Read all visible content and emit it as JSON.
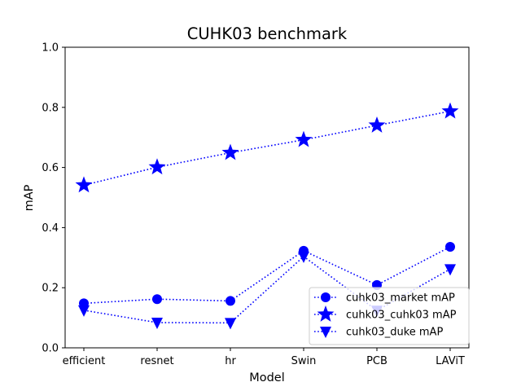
{
  "chart_data": {
    "type": "line",
    "title": "CUHK03 benchmark",
    "xlabel": "Model",
    "ylabel": "mAP",
    "categories": [
      "efficient",
      "resnet",
      "hr",
      "Swin",
      "PCB",
      "LAViT"
    ],
    "ylim": [
      0,
      1.0
    ],
    "yticks": [
      "0.0",
      "0.2",
      "0.4",
      "0.6",
      "0.8",
      "1.0"
    ],
    "grid": false,
    "legend_position": "lower-right",
    "series": [
      {
        "name": "cuhk03_market mAP",
        "marker": "circle",
        "color": "#0000ff",
        "line_style": "dotted",
        "values": [
          0.148,
          0.162,
          0.156,
          0.323,
          0.209,
          0.336
        ]
      },
      {
        "name": "cuhk03_cuhk03 mAP",
        "marker": "star",
        "color": "#0000ff",
        "line_style": "dotted",
        "values": [
          0.541,
          0.601,
          0.649,
          0.692,
          0.74,
          0.787
        ]
      },
      {
        "name": "cuhk03_duke mAP",
        "marker": "triangle-down",
        "color": "#0000ff",
        "line_style": "dotted",
        "values": [
          0.125,
          0.084,
          0.083,
          0.304,
          0.124,
          0.262
        ]
      }
    ]
  }
}
